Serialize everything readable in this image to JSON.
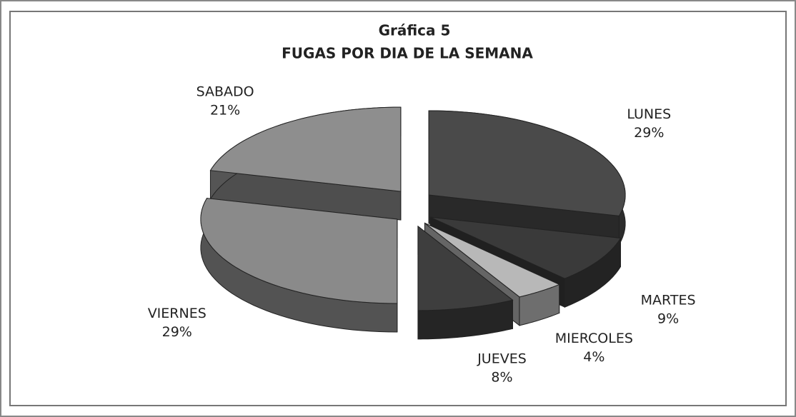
{
  "chart_data": {
    "type": "pie3d",
    "title": "Gráfica 5",
    "subtitle": "FUGAS POR DIA DE LA SEMANA",
    "categories": [
      "LUNES",
      "MARTES",
      "MIERCOLES",
      "JUEVES",
      "VIERNES",
      "SABADO"
    ],
    "values": [
      29,
      9,
      4,
      8,
      29,
      21
    ],
    "value_labels": [
      "29%",
      "9%",
      "4%",
      "8%",
      "29%",
      "21%"
    ],
    "colors": [
      "#4a4a4a",
      "#3a3a3a",
      "#b8b8b8",
      "#3e3e3e",
      "#8a8a8a",
      "#8e8e8e"
    ]
  }
}
